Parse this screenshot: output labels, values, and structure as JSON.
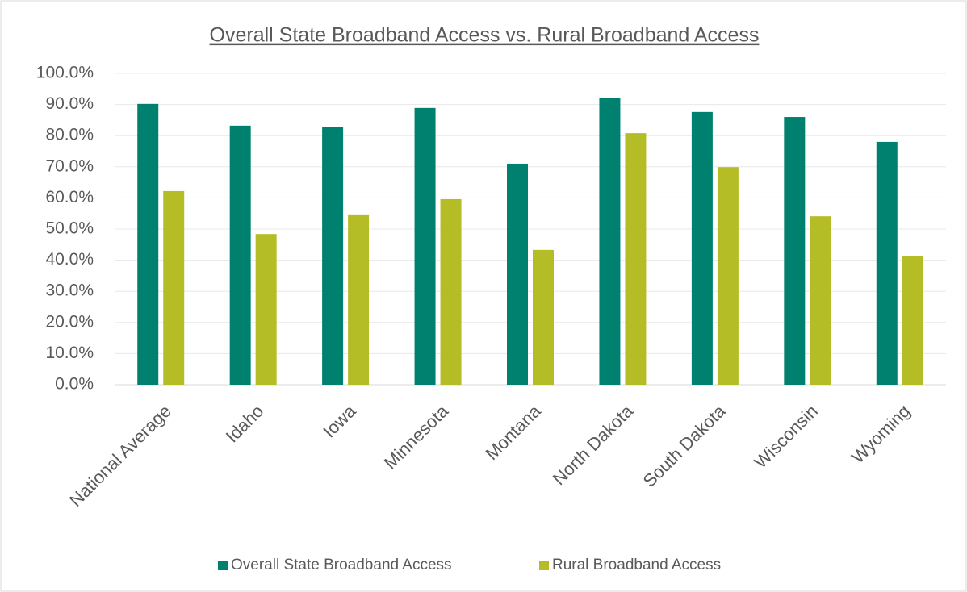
{
  "chart_data": {
    "type": "bar",
    "title": "Overall State Broadband Access vs. Rural Broadband Access",
    "categories": [
      "National Average",
      "Idaho",
      "Iowa",
      "Minnesota",
      "Montana",
      "North Dakota",
      "South Dakota",
      "Wisconsin",
      "Wyoming"
    ],
    "series": [
      {
        "name": "Overall State Broadband Access",
        "color": "#00806e",
        "values": [
          90.2,
          83.2,
          82.9,
          88.9,
          71.0,
          92.2,
          87.6,
          86.0,
          78.0
        ]
      },
      {
        "name": "Rural Broadband Access",
        "color": "#b5bd26",
        "values": [
          62.2,
          48.4,
          54.7,
          59.6,
          43.3,
          80.8,
          69.9,
          54.1,
          41.2
        ]
      }
    ],
    "ylim": [
      0,
      100
    ],
    "yticks": [
      {
        "value": 0,
        "label": "0.0%"
      },
      {
        "value": 10,
        "label": "10.0%"
      },
      {
        "value": 20,
        "label": "20.0%"
      },
      {
        "value": 30,
        "label": "30.0%"
      },
      {
        "value": 40,
        "label": "40.0%"
      },
      {
        "value": 50,
        "label": "50.0%"
      },
      {
        "value": 60,
        "label": "60.0%"
      },
      {
        "value": 70,
        "label": "70.0%"
      },
      {
        "value": 80,
        "label": "80.0%"
      },
      {
        "value": 90,
        "label": "90.0%"
      },
      {
        "value": 100,
        "label": "100.0%"
      }
    ],
    "grid": true,
    "legend": "bottom"
  }
}
